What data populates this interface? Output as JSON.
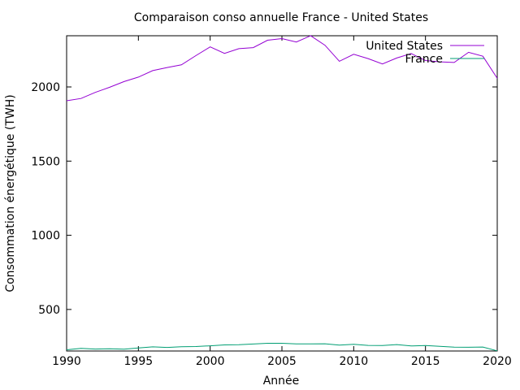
{
  "chart_data": {
    "type": "line",
    "title": "Comparaison conso annuelle France - United States",
    "xlabel": "Année",
    "ylabel": "Consommation énergétique (TWH)",
    "xlim": [
      1990,
      2020
    ],
    "ylim": [
      220,
      2345
    ],
    "grid": false,
    "legend_position": "top-right",
    "x_ticks": [
      1990,
      1995,
      2000,
      2005,
      2010,
      2015,
      2020
    ],
    "x_tick_labels": [
      "1990",
      "1995",
      "2000",
      "2005",
      "2010",
      "2015",
      "2020"
    ],
    "y_ticks": [
      500,
      1000,
      1500,
      2000
    ],
    "y_tick_labels": [
      "500",
      "1000",
      "1500",
      "2000"
    ],
    "x": [
      1990,
      1991,
      1992,
      1993,
      1994,
      1995,
      1996,
      1997,
      1998,
      1999,
      2000,
      2001,
      2002,
      2003,
      2004,
      2005,
      2006,
      2007,
      2008,
      2009,
      2010,
      2011,
      2012,
      2013,
      2014,
      2015,
      2016,
      2017,
      2018,
      2019,
      2020
    ],
    "series": [
      {
        "name": "United States",
        "color": "#9400d3",
        "values": [
          1907,
          1922,
          1963,
          1998,
          2036,
          2066,
          2110,
          2131,
          2149,
          2211,
          2270,
          2226,
          2258,
          2265,
          2315,
          2326,
          2303,
          2345,
          2281,
          2173,
          2220,
          2191,
          2155,
          2195,
          2225,
          2178,
          2169,
          2165,
          2233,
          2207,
          2058
        ]
      },
      {
        "name": "France",
        "color": "#009e73",
        "values": [
          228,
          238,
          233,
          235,
          232,
          240,
          248,
          244,
          249,
          250,
          255,
          261,
          262,
          267,
          272,
          272,
          268,
          268,
          269,
          260,
          265,
          258,
          257,
          263,
          254,
          257,
          252,
          246,
          245,
          247,
          221
        ]
      }
    ]
  }
}
